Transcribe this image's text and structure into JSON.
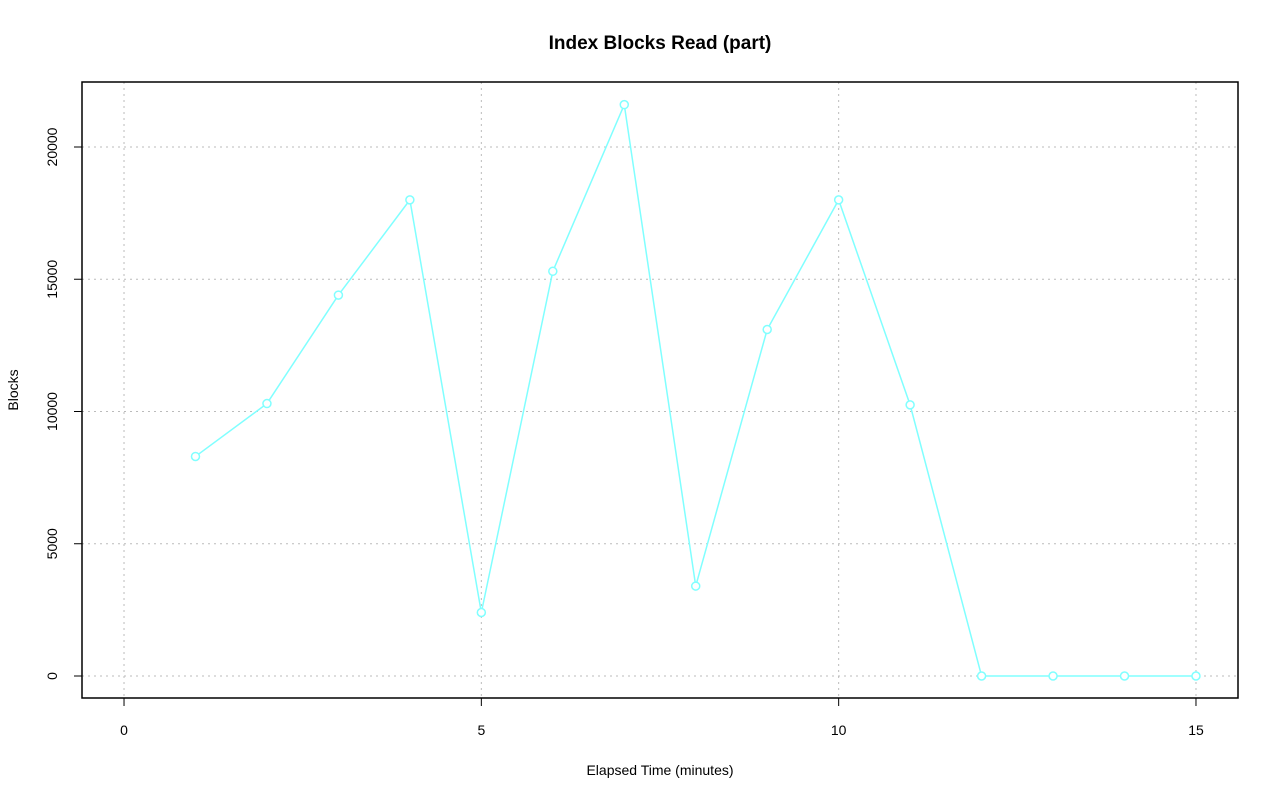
{
  "chart_data": {
    "type": "line",
    "title": "Index Blocks Read (part)",
    "x_label": "Elapsed Time (minutes)",
    "y_label": "Blocks",
    "x": [
      1,
      2,
      3,
      4,
      5,
      6,
      7,
      8,
      9,
      10,
      11,
      12,
      13,
      14,
      15
    ],
    "series": [
      {
        "name": "Index Blocks Read",
        "color": "#80ffff",
        "values": [
          8300,
          10300,
          14400,
          18000,
          2400,
          15300,
          21600,
          3400,
          13100,
          18000,
          10250,
          0,
          0,
          0,
          0
        ]
      }
    ],
    "xlim": [
      -0.588,
      15.588
    ],
    "xticks": [
      0,
      5,
      10,
      15
    ],
    "ylim": [
      -832,
      22457
    ],
    "yticks": [
      0,
      5000,
      10000,
      15000,
      20000
    ],
    "grid": true
  }
}
